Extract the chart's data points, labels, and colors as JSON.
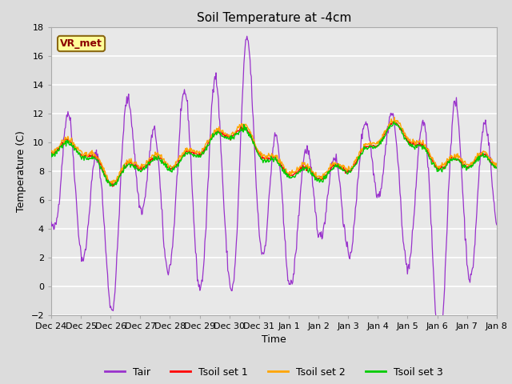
{
  "title": "Soil Temperature at -4cm",
  "xlabel": "Time",
  "ylabel": "Temperature (C)",
  "ylim": [
    -2,
    18
  ],
  "yticks": [
    -2,
    0,
    2,
    4,
    6,
    8,
    10,
    12,
    14,
    16,
    18
  ],
  "xtick_labels": [
    "Dec 24",
    "Dec 25",
    "Dec 26",
    "Dec 27",
    "Dec 28",
    "Dec 29",
    "Dec 30",
    "Dec 31",
    "Jan 1",
    "Jan 2",
    "Jan 3",
    "Jan 4",
    "Jan 5",
    "Jan 6",
    "Jan 7",
    "Jan 8"
  ],
  "legend_labels": [
    "Tair",
    "Tsoil set 1",
    "Tsoil set 2",
    "Tsoil set 3"
  ],
  "legend_colors": [
    "#9932CC",
    "#FF0000",
    "#FFA500",
    "#00CC00"
  ],
  "annotation_text": "VR_met",
  "annotation_bgcolor": "#FFFF99",
  "annotation_edgecolor": "#8B6914",
  "annotation_textcolor": "#8B0000",
  "fig_facecolor": "#DCDCDC",
  "ax_facecolor": "#E8E8E8",
  "grid_color": "#FFFFFF",
  "title_fontsize": 11,
  "axis_fontsize": 9,
  "tick_fontsize": 8
}
